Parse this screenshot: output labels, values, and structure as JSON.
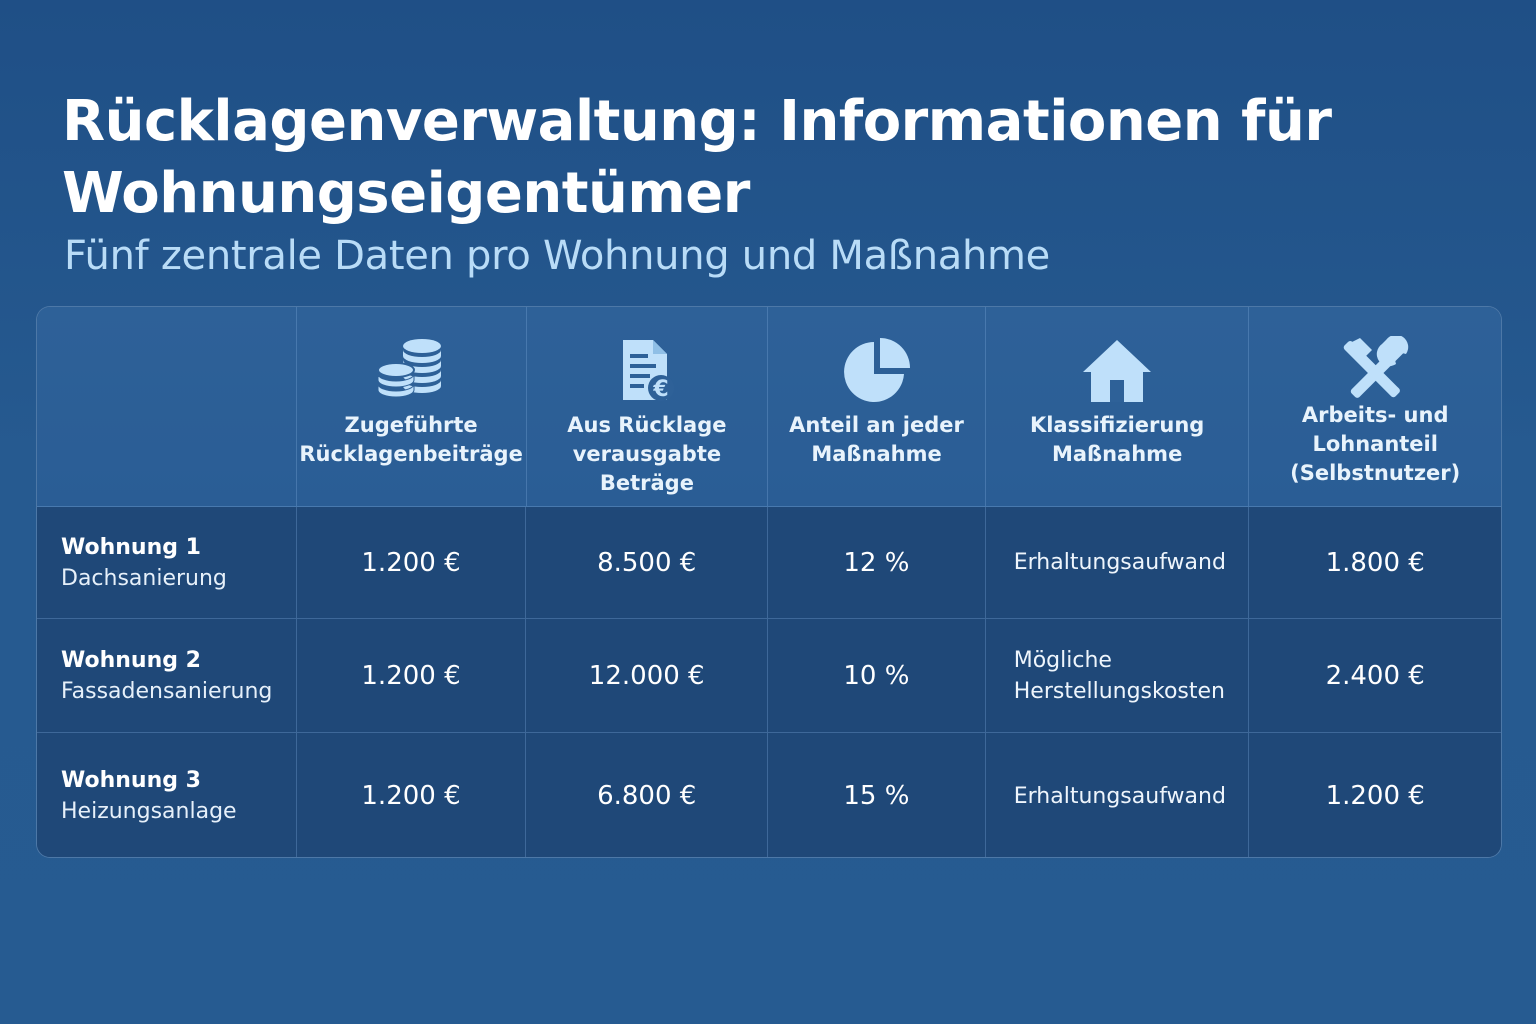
{
  "header": {
    "title": "Rücklagenverwaltung: Informationen für Wohnungseigentümer",
    "subtitle": "Fünf zentrale Daten pro Wohnung und Maßnahme"
  },
  "table": {
    "columns": [
      {
        "label": "Zugeführte Rücklagenbeiträge",
        "icon": "coins-icon"
      },
      {
        "label": "Aus Rücklage verausgabte Beträge",
        "icon": "euro-document-icon"
      },
      {
        "label": "Anteil an jeder Maßnahme",
        "icon": "pie-chart-icon"
      },
      {
        "label": "Klassifizierung Maßnahme",
        "icon": "house-icon"
      },
      {
        "label": "Arbeits- und Lohnanteil (Selbstnutzer)",
        "icon": "hammer-wrench-icon"
      }
    ],
    "rows": [
      {
        "unit": "Wohnung 1",
        "measure": "Dachsanierung",
        "contributed": "1.200 €",
        "spent": "8.500 €",
        "share": "12 %",
        "classification": "Erhaltungsaufwand",
        "labor": "1.800 €"
      },
      {
        "unit": "Wohnung 2",
        "measure": "Fassadensanierung",
        "contributed": "1.200 €",
        "spent": "12.000 €",
        "share": "10 %",
        "classification": "Mögliche Herstellungskosten",
        "labor": "2.400 €"
      },
      {
        "unit": "Wohnung 3",
        "measure": "Heizungsanlage",
        "contributed": "1.200 €",
        "spent": "6.800 €",
        "share": "15 %",
        "classification": "Erhaltungsaufwand",
        "labor": "1.200 €"
      }
    ]
  },
  "colors": {
    "background": "#265a90",
    "subtitle": "#b9dcf7",
    "icon": "#bfe0fa"
  }
}
